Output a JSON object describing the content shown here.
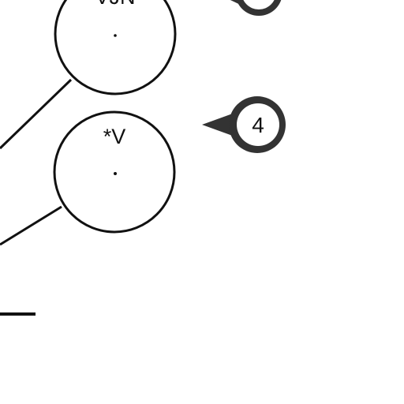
{
  "diagram": {
    "nodes": [
      {
        "id": "vjn",
        "label": "VJN"
      },
      {
        "id": "v",
        "label": "*V"
      }
    ],
    "callouts": [
      {
        "id": "callout-top",
        "label": ""
      },
      {
        "id": "callout-4",
        "label": "4"
      }
    ],
    "colors": {
      "stroke": "#111111",
      "callout_fill": "#333333",
      "background": "#ffffff"
    }
  }
}
